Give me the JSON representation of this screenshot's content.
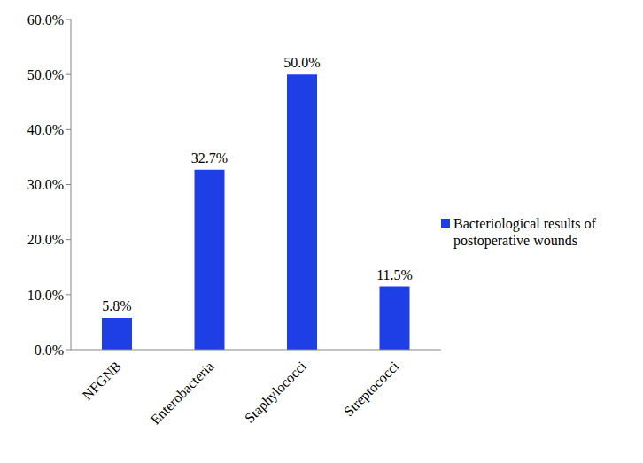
{
  "chart_data": {
    "type": "bar",
    "categories": [
      "NFGNB",
      "Enterobacteria",
      "Staphylococci",
      "Streptococci"
    ],
    "series": [
      {
        "name": "Bacteriological results of postoperative wounds",
        "color": "#1f3fe6",
        "values": [
          5.8,
          32.7,
          50.0,
          11.5
        ],
        "value_labels": [
          "5.8%",
          "32.7%",
          "50.0%",
          "11.5%"
        ]
      }
    ],
    "ylim": [
      0,
      60
    ],
    "yticks": [
      {
        "value": 0,
        "label": "0.0%"
      },
      {
        "value": 10,
        "label": "10.0%"
      },
      {
        "value": 20,
        "label": "20.0%"
      },
      {
        "value": 30,
        "label": "30.0%"
      },
      {
        "value": 40,
        "label": "40.0%"
      },
      {
        "value": 50,
        "label": "50.0%"
      },
      {
        "value": 60,
        "label": "60.0%"
      }
    ],
    "grid": false,
    "legend": "right",
    "data_labels": true
  }
}
